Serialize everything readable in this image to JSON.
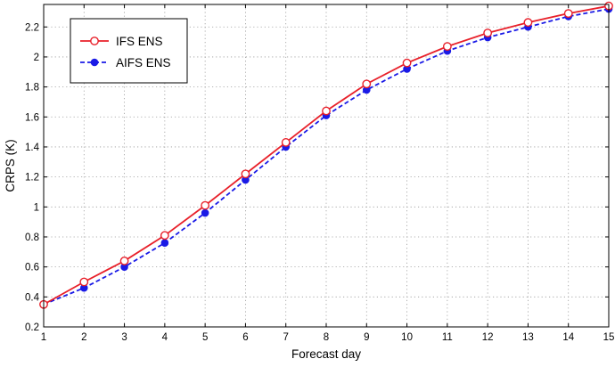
{
  "chart_data": {
    "type": "line",
    "xlabel": "Forecast day",
    "ylabel": "CRPS (K)",
    "xlim": [
      1,
      15
    ],
    "ylim": [
      0.2,
      2.35
    ],
    "xticks": [
      1,
      2,
      3,
      4,
      5,
      6,
      7,
      8,
      9,
      10,
      11,
      12,
      13,
      14,
      15
    ],
    "yticks": [
      0.2,
      0.4,
      0.6,
      0.8,
      1,
      1.2,
      1.4,
      1.6,
      1.8,
      2,
      2.2
    ],
    "grid": true,
    "legend_position": "top-left",
    "x": [
      1,
      2,
      3,
      4,
      5,
      6,
      7,
      8,
      9,
      10,
      11,
      12,
      13,
      14,
      15
    ],
    "series": [
      {
        "name": "IFS ENS",
        "color": "#e8202a",
        "line_style": "solid",
        "marker": "open-circle",
        "values": [
          0.35,
          0.5,
          0.64,
          0.81,
          1.01,
          1.22,
          1.43,
          1.64,
          1.82,
          1.96,
          2.07,
          2.16,
          2.23,
          2.29,
          2.34
        ]
      },
      {
        "name": "AIFS ENS",
        "color": "#1a1ae6",
        "line_style": "dashed",
        "marker": "filled-circle",
        "values": [
          0.35,
          0.46,
          0.6,
          0.76,
          0.96,
          1.18,
          1.4,
          1.61,
          1.78,
          1.92,
          2.04,
          2.13,
          2.2,
          2.27,
          2.32
        ]
      }
    ]
  }
}
